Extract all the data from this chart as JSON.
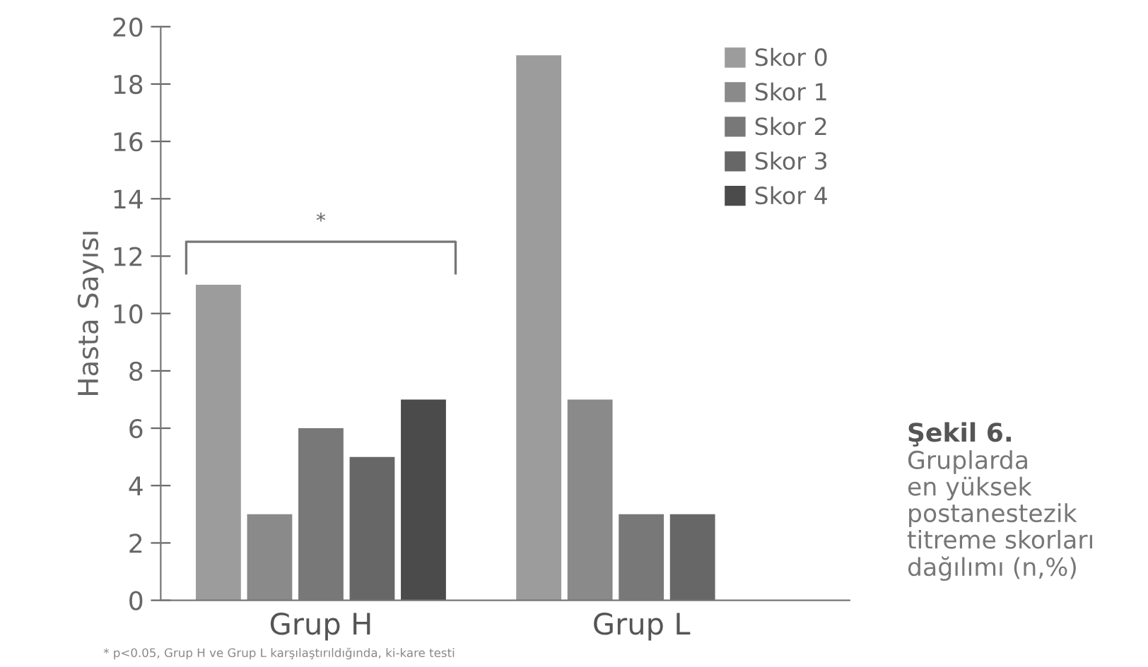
{
  "chart_data": {
    "type": "bar",
    "title": "Şekil 6.",
    "subtitle": "Gruplarda\nen yüksek\npostanestezik\ntitreme skorları\ndağılımı (n,%)",
    "ylabel": "Hasta Sayısı",
    "categories": [
      "Grup H",
      "Grup L"
    ],
    "series": [
      {
        "name": "Skor 0",
        "color": "#9c9c9c",
        "values": [
          11,
          19
        ]
      },
      {
        "name": "Skor 1",
        "color": "#8a8a8a",
        "values": [
          3,
          7
        ]
      },
      {
        "name": "Skor 2",
        "color": "#787878",
        "values": [
          6,
          3
        ]
      },
      {
        "name": "Skor 3",
        "color": "#676767",
        "values": [
          5,
          3
        ]
      },
      {
        "name": "Skor 4",
        "color": "#4b4b4b",
        "values": [
          7,
          null
        ]
      }
    ],
    "ylim": [
      0,
      20
    ],
    "yticks": [
      0,
      2,
      4,
      6,
      8,
      10,
      12,
      14,
      16,
      18,
      20
    ],
    "legend": "top right",
    "annotations": [
      "*",
      "* p<0.05, Grup H ve Grup L karşılaştırıldığında, ki-kare testi"
    ]
  }
}
